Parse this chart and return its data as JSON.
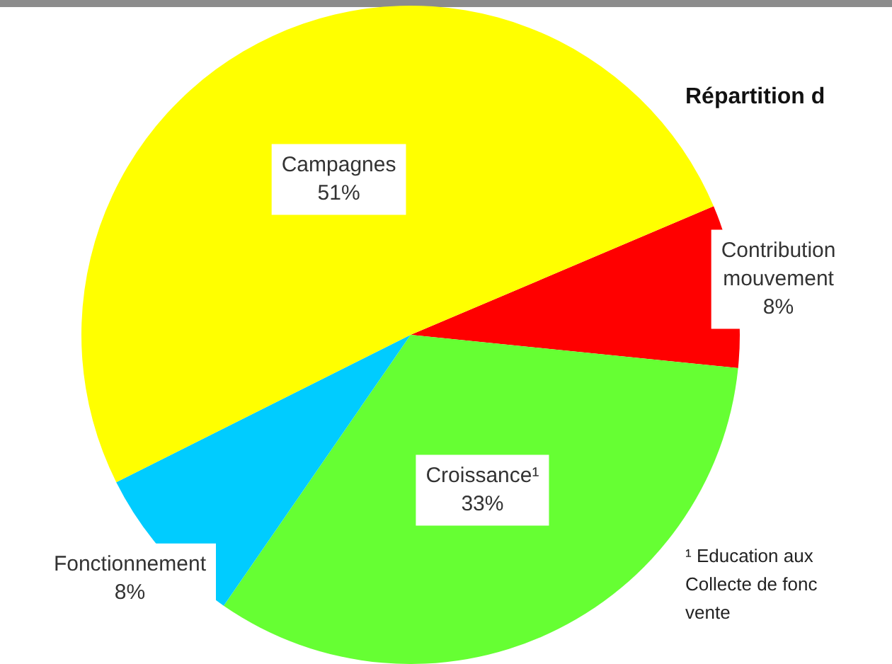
{
  "chart_data": {
    "type": "pie",
    "title": "Répartition d",
    "categories": [
      "Contribution mouvement",
      "Croissance¹",
      "Fonctionnement",
      "Campagnes"
    ],
    "values": [
      8,
      33,
      8,
      51
    ],
    "colors": [
      "#ff0000",
      "#66ff33",
      "#00ccff",
      "#ffff00"
    ],
    "value_labels": [
      "8%",
      "33%",
      "8%",
      "51%"
    ],
    "legend": false,
    "annotations": [
      "¹ Education aux",
      "Collecte de fonc",
      "vente"
    ]
  }
}
